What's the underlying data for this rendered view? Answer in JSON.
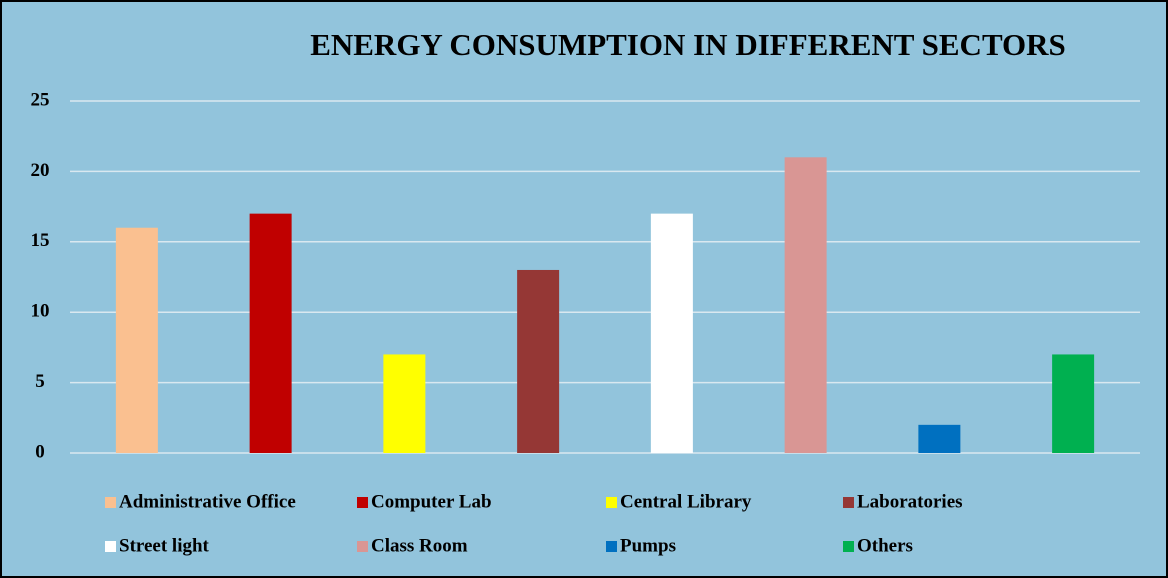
{
  "chart_data": {
    "type": "bar",
    "title": "ENERGY CONSUMPTION IN DIFFERENT SECTORS",
    "categories": [
      "Administrative Office",
      "Computer Lab",
      "Central Library",
      "Laboratories",
      "Street light",
      "Class Room",
      "Pumps",
      "Others"
    ],
    "values": [
      16,
      17,
      7,
      13,
      17,
      21,
      2,
      7
    ],
    "colors": [
      "#fac090",
      "#c00000",
      "#ffff00",
      "#953735",
      "#ffffff",
      "#d99694",
      "#0070c0",
      "#00b050"
    ],
    "ylim": [
      0,
      25
    ],
    "yticks": [
      0,
      5,
      10,
      15,
      20,
      25
    ],
    "grid": true,
    "legend": "bottom"
  }
}
